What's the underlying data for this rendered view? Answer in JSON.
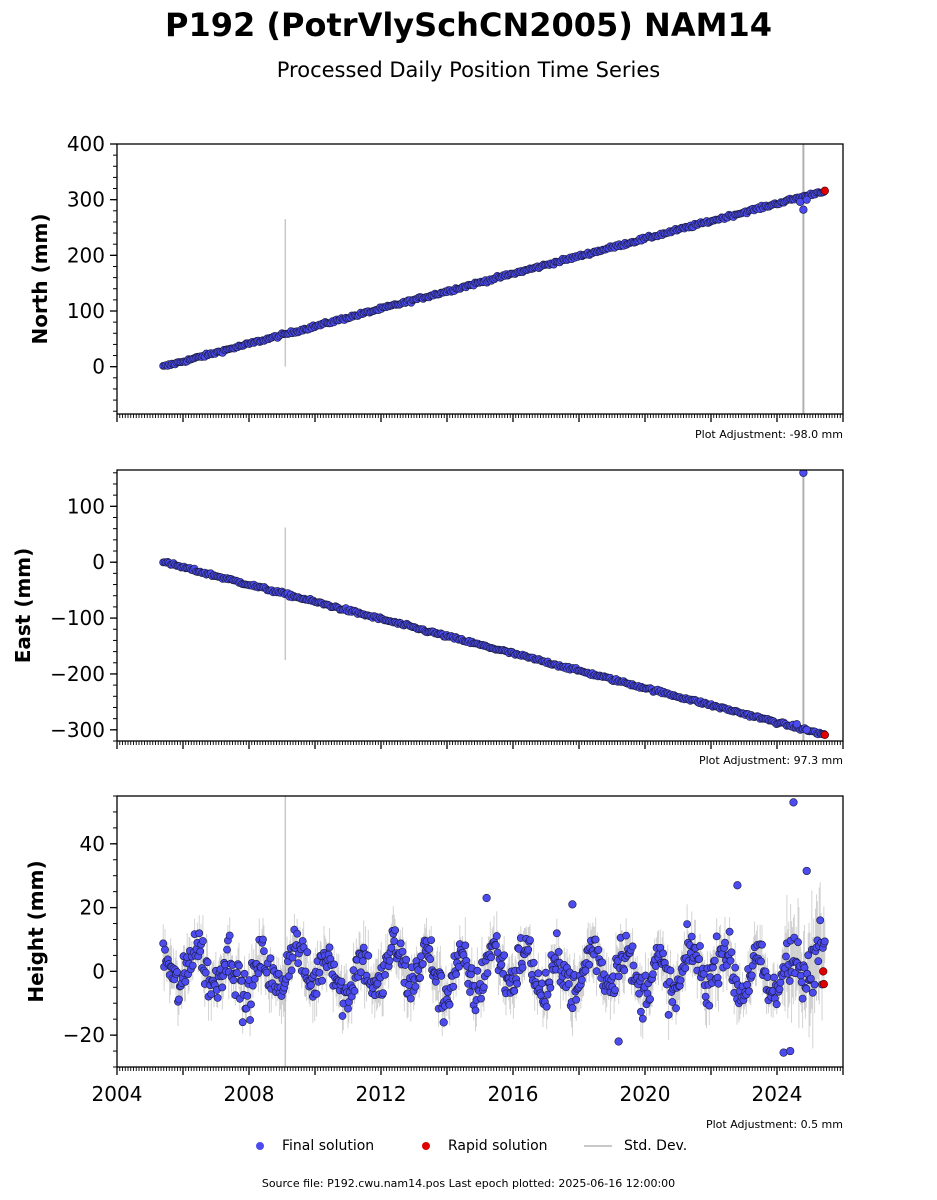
{
  "title": "P192 (PotrVlySchCN2005) NAM14",
  "subtitle": "Processed Daily Position Time Series",
  "footer": "Source file: P192.cwu.nam14.pos  Last epoch plotted: 2025-06-16 12:00:00",
  "legend": {
    "final": "Final solution",
    "rapid": "Rapid solution",
    "std": "Std. Dev."
  },
  "colors": {
    "final": "#4b4bf0",
    "rapid": "#e00000",
    "std": "#c8c8c8",
    "edge": "#1a1a3a"
  },
  "chart_data": [
    {
      "type": "scatter",
      "ylabel": "North (mm)",
      "adjustment": "Plot Adjustment: -98.0 mm",
      "xlim": [
        2004.0,
        2026.0
      ],
      "ylim": [
        -85,
        400
      ],
      "yticks": [
        0,
        100,
        200,
        300,
        400
      ],
      "trend": {
        "start": [
          2005.4,
          0
        ],
        "end": [
          2025.45,
          316
        ]
      },
      "noise": 2,
      "outliers": [
        [
          2024.8,
          282
        ],
        [
          2024.7,
          296
        ],
        [
          2024.9,
          300
        ]
      ],
      "rapid": [
        [
          2025.45,
          316
        ]
      ],
      "std_spikes": [
        [
          2009.1,
          0,
          265
        ]
      ],
      "grey_lines": [
        2024.8
      ]
    },
    {
      "type": "scatter",
      "ylabel": "East (mm)",
      "adjustment": "Plot Adjustment: 97.3 mm",
      "xlim": [
        2004.0,
        2026.0
      ],
      "ylim": [
        -320,
        165
      ],
      "yticks": [
        100,
        0,
        -100,
        -200,
        -300
      ],
      "trend": {
        "start": [
          2005.4,
          0
        ],
        "end": [
          2025.45,
          -309
        ]
      },
      "noise": 2,
      "outliers": [
        [
          2024.8,
          160
        ],
        [
          2024.6,
          -290
        ],
        [
          2024.9,
          -300
        ]
      ],
      "rapid": [
        [
          2025.45,
          -309
        ]
      ],
      "std_spikes": [
        [
          2009.1,
          -175,
          62
        ]
      ],
      "grey_lines": [
        2024.8
      ]
    },
    {
      "type": "scatter",
      "ylabel": "Height (mm)",
      "adjustment": "Plot Adjustment: 0.5 mm",
      "xlim": [
        2004.0,
        2026.0
      ],
      "ylim": [
        -30,
        55
      ],
      "yticks": [
        40,
        20,
        0,
        -20
      ],
      "xticks": [
        2004,
        2008,
        2012,
        2016,
        2020,
        2024
      ],
      "trend": {
        "start": [
          2005.4,
          0
        ],
        "end": [
          2025.45,
          0
        ]
      },
      "seasonal_amplitude": 6,
      "noise": 5,
      "outliers": [
        [
          2024.5,
          53
        ],
        [
          2024.9,
          31.5
        ],
        [
          2022.8,
          27
        ],
        [
          2015.2,
          23
        ],
        [
          2017.8,
          21
        ],
        [
          2024.2,
          -25.5
        ],
        [
          2024.4,
          -25
        ],
        [
          2019.2,
          -22
        ],
        [
          2013.9,
          -16
        ]
      ],
      "rapid": [
        [
          2025.4,
          0
        ],
        [
          2025.42,
          -4
        ]
      ],
      "std_spikes": [
        [
          2009.1,
          -30,
          55
        ]
      ],
      "grey_lines": []
    }
  ]
}
